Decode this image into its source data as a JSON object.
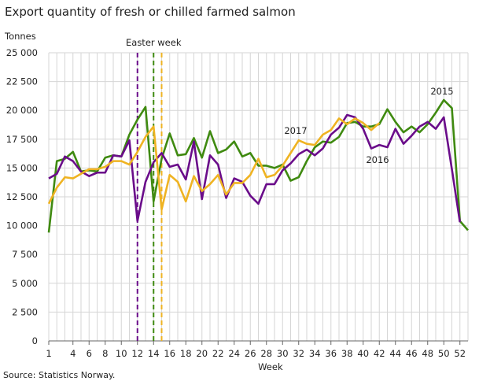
{
  "chart_data": {
    "type": "line",
    "title": "Export quantity of fresh or chilled farmed salmon",
    "ylabel": "Tonnes",
    "xlabel": "Week",
    "source": "Source: Statistics Norway.",
    "ylim": [
      0,
      25000
    ],
    "xlim": [
      1,
      53
    ],
    "yticks": [
      "0",
      "2 500",
      "5 000",
      "7 500",
      "10 000",
      "12 500",
      "15 000",
      "17 500",
      "20 000",
      "22 500",
      "25 000"
    ],
    "xticks": [
      1,
      4,
      6,
      8,
      10,
      12,
      14,
      16,
      18,
      20,
      22,
      24,
      26,
      28,
      30,
      32,
      34,
      36,
      38,
      40,
      42,
      44,
      46,
      48,
      50,
      52
    ],
    "grid": true,
    "annotation": {
      "text": "Easter week",
      "weeks": [
        {
          "year": "2016",
          "week": 12
        },
        {
          "year": "2015",
          "week": 14
        },
        {
          "year": "2017",
          "week": 15
        }
      ]
    },
    "series": [
      {
        "name": "2015",
        "color": "#3f8a10",
        "values": [
          9400,
          15600,
          15800,
          16400,
          14700,
          14800,
          14700,
          15900,
          16100,
          16000,
          17900,
          19200,
          20300,
          12100,
          15800,
          18000,
          16100,
          16200,
          17600,
          15900,
          18200,
          16300,
          16600,
          17300,
          16000,
          16300,
          15200,
          15200,
          15000,
          15300,
          13900,
          14200,
          15600,
          16800,
          17300,
          17200,
          17700,
          18900,
          19000,
          18600,
          18600,
          18800,
          20100,
          19000,
          18100,
          18600,
          18100,
          18800,
          19800,
          20900,
          20200,
          10400,
          9600
        ]
      },
      {
        "name": "2016",
        "color": "#6a0c8a",
        "values": [
          14100,
          14500,
          16000,
          15600,
          14700,
          14300,
          14600,
          14600,
          16100,
          16000,
          17400,
          10400,
          13800,
          15500,
          16300,
          15100,
          15300,
          14000,
          17300,
          12300,
          16100,
          15300,
          12400,
          14100,
          13800,
          12600,
          11900,
          13600,
          13600,
          14800,
          15400,
          16200,
          16600,
          16100,
          16700,
          17900,
          18500,
          19600,
          19400,
          18400,
          16700,
          17000,
          16800,
          18400,
          17100,
          17800,
          18600,
          19000,
          18400,
          19400,
          14900,
          10300
        ]
      },
      {
        "name": "2017",
        "color": "#efb322",
        "values": [
          11900,
          13300,
          14200,
          14100,
          14500,
          14900,
          14900,
          15100,
          15600,
          15600,
          15300,
          16400,
          17700,
          18600,
          11400,
          14400,
          13800,
          12100,
          14300,
          13000,
          13600,
          14400,
          12700,
          13700,
          13700,
          14400,
          15800,
          14200,
          14400,
          15200,
          16300,
          17400,
          17100,
          17000,
          17900,
          18300,
          19300,
          18800,
          19300,
          18900,
          18300,
          18900
        ]
      }
    ]
  }
}
